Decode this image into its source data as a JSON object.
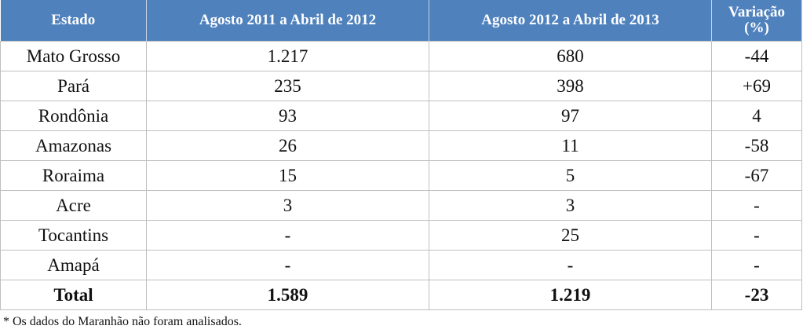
{
  "table": {
    "header": [
      "Estado",
      "Agosto 2011 a Abril de 2012",
      "Agosto 2012 a Abril de 2013",
      "Variação (%)"
    ],
    "rows": [
      [
        "Mato Grosso",
        "1.217",
        "680",
        "-44"
      ],
      [
        "Pará",
        "235",
        "398",
        "+69"
      ],
      [
        "Rondônia",
        "93",
        "97",
        "4"
      ],
      [
        "Amazonas",
        "26",
        "11",
        "-58"
      ],
      [
        "Roraima",
        "15",
        "5",
        "-67"
      ],
      [
        "Acre",
        "3",
        "3",
        "-"
      ],
      [
        "Tocantins",
        "-",
        "25",
        "-"
      ],
      [
        "Amapá",
        "-",
        "-",
        "-"
      ],
      [
        "Total",
        "1.589",
        "1.219",
        "-23"
      ]
    ]
  },
  "footnote": "* Os dados do Maranhão não foram analisados."
}
